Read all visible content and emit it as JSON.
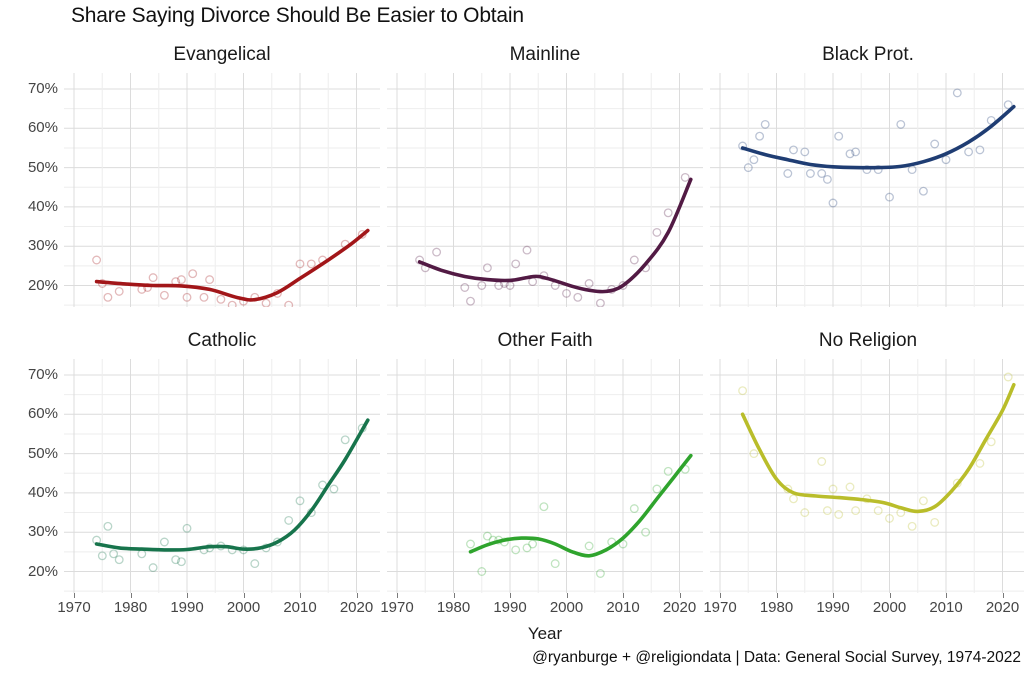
{
  "title": "Share Saying Divorce Should Be Easier to Obtain",
  "xlabel": "Year",
  "caption": "@ryanburge + @religiondata | Data: General Social Survey, 1974-2022",
  "chart_data": {
    "type": "scatter",
    "smoother": "loess-trend-line",
    "grid": true,
    "legend": "none",
    "x_ticks": [
      1970,
      1980,
      1990,
      2000,
      2010,
      2020
    ],
    "y_ticks": [
      "70%",
      "60%",
      "50%",
      "40%",
      "30%",
      "20%"
    ],
    "xlim": [
      1968,
      2024
    ],
    "ylim": [
      14,
      74
    ],
    "grid_major_color": "#dcdcdc",
    "grid_minor_color": "#eeeeee",
    "facets": [
      {
        "title": "Evangelical",
        "color": "#a21619",
        "points": [
          [
            1974,
            26.5
          ],
          [
            1975,
            20.5
          ],
          [
            1976,
            17
          ],
          [
            1978,
            18.5
          ],
          [
            1982,
            19
          ],
          [
            1983,
            19.5
          ],
          [
            1984,
            22
          ],
          [
            1986,
            17.5
          ],
          [
            1988,
            21
          ],
          [
            1989,
            21.5
          ],
          [
            1990,
            17
          ],
          [
            1991,
            23
          ],
          [
            1993,
            17
          ],
          [
            1994,
            21.5
          ],
          [
            1996,
            16.5
          ],
          [
            1998,
            15
          ],
          [
            2000,
            16
          ],
          [
            2002,
            17
          ],
          [
            2004,
            15.5
          ],
          [
            2006,
            18
          ],
          [
            2008,
            15
          ],
          [
            2010,
            25.5
          ],
          [
            2012,
            25.5
          ],
          [
            2014,
            26.5
          ],
          [
            2018,
            30.5
          ],
          [
            2021,
            33
          ]
        ],
        "trend": [
          [
            1974,
            21
          ],
          [
            1979,
            20.4
          ],
          [
            1984,
            20
          ],
          [
            1989,
            19.9
          ],
          [
            1994,
            19
          ],
          [
            1999,
            16.9
          ],
          [
            2002,
            16.4
          ],
          [
            2006,
            18.2
          ],
          [
            2010,
            21.8
          ],
          [
            2015,
            26.5
          ],
          [
            2019,
            30.5
          ],
          [
            2022,
            34
          ]
        ]
      },
      {
        "title": "Mainline",
        "color": "#521a44",
        "points": [
          [
            1974,
            26.5
          ],
          [
            1975,
            24.5
          ],
          [
            1977,
            28.5
          ],
          [
            1982,
            19.5
          ],
          [
            1983,
            16
          ],
          [
            1985,
            20
          ],
          [
            1986,
            24.5
          ],
          [
            1988,
            20
          ],
          [
            1989,
            20.5
          ],
          [
            1990,
            20
          ],
          [
            1991,
            25.5
          ],
          [
            1993,
            29
          ],
          [
            1994,
            21
          ],
          [
            1996,
            22.5
          ],
          [
            1998,
            20
          ],
          [
            2000,
            18
          ],
          [
            2002,
            17
          ],
          [
            2004,
            20.5
          ],
          [
            2006,
            15.5
          ],
          [
            2008,
            19
          ],
          [
            2010,
            20
          ],
          [
            2012,
            26.5
          ],
          [
            2014,
            24.5
          ],
          [
            2016,
            33.5
          ],
          [
            2018,
            38.5
          ],
          [
            2021,
            47.5
          ]
        ],
        "trend": [
          [
            1974,
            26
          ],
          [
            1978,
            23.8
          ],
          [
            1982,
            22.3
          ],
          [
            1986,
            21.5
          ],
          [
            1990,
            21.3
          ],
          [
            1993,
            22
          ],
          [
            1995,
            22.3
          ],
          [
            1998,
            21.2
          ],
          [
            2001,
            19.8
          ],
          [
            2004,
            18.8
          ],
          [
            2007,
            18.5
          ],
          [
            2010,
            20
          ],
          [
            2014,
            25.5
          ],
          [
            2018,
            33.5
          ],
          [
            2022,
            47
          ]
        ]
      },
      {
        "title": "Black Prot.",
        "color": "#1f3d73",
        "points": [
          [
            1974,
            55.5
          ],
          [
            1975,
            50
          ],
          [
            1976,
            52
          ],
          [
            1977,
            58
          ],
          [
            1978,
            61
          ],
          [
            1982,
            48.5
          ],
          [
            1983,
            54.5
          ],
          [
            1985,
            54
          ],
          [
            1986,
            48.5
          ],
          [
            1988,
            48.5
          ],
          [
            1989,
            47
          ],
          [
            1990,
            41
          ],
          [
            1991,
            58
          ],
          [
            1993,
            53.5
          ],
          [
            1994,
            54
          ],
          [
            1996,
            49.5
          ],
          [
            1998,
            49.5
          ],
          [
            2000,
            42.5
          ],
          [
            2002,
            61
          ],
          [
            2004,
            49.5
          ],
          [
            2006,
            44
          ],
          [
            2008,
            56
          ],
          [
            2010,
            52
          ],
          [
            2012,
            69
          ],
          [
            2014,
            54
          ],
          [
            2016,
            54.5
          ],
          [
            2018,
            62
          ],
          [
            2021,
            66
          ]
        ],
        "trend": [
          [
            1974,
            55
          ],
          [
            1978,
            53.3
          ],
          [
            1982,
            52
          ],
          [
            1986,
            50.8
          ],
          [
            1990,
            50.2
          ],
          [
            1994,
            50
          ],
          [
            1998,
            50
          ],
          [
            2002,
            50.3
          ],
          [
            2006,
            51.5
          ],
          [
            2010,
            53.5
          ],
          [
            2014,
            56.5
          ],
          [
            2018,
            60.5
          ],
          [
            2022,
            65.5
          ]
        ]
      },
      {
        "title": "Catholic",
        "color": "#17744c",
        "points": [
          [
            1974,
            28
          ],
          [
            1975,
            24
          ],
          [
            1976,
            31.5
          ],
          [
            1977,
            24.5
          ],
          [
            1978,
            23
          ],
          [
            1982,
            24.5
          ],
          [
            1984,
            21
          ],
          [
            1986,
            27.5
          ],
          [
            1988,
            23
          ],
          [
            1989,
            22.5
          ],
          [
            1990,
            31
          ],
          [
            1993,
            25.5
          ],
          [
            1994,
            26
          ],
          [
            1996,
            26.5
          ],
          [
            1998,
            25.5
          ],
          [
            2000,
            25.5
          ],
          [
            2002,
            22
          ],
          [
            2004,
            26
          ],
          [
            2006,
            27.5
          ],
          [
            2008,
            33
          ],
          [
            2010,
            38
          ],
          [
            2012,
            35
          ],
          [
            2014,
            42
          ],
          [
            2016,
            41
          ],
          [
            2018,
            53.5
          ],
          [
            2021,
            56.5
          ]
        ],
        "trend": [
          [
            1974,
            27
          ],
          [
            1978,
            26
          ],
          [
            1982,
            25.7
          ],
          [
            1986,
            25.5
          ],
          [
            1990,
            25.6
          ],
          [
            1994,
            26.3
          ],
          [
            1997,
            26.3
          ],
          [
            2000,
            25.7
          ],
          [
            2003,
            26
          ],
          [
            2006,
            27.5
          ],
          [
            2009,
            30.5
          ],
          [
            2012,
            35.5
          ],
          [
            2015,
            42
          ],
          [
            2018,
            48.5
          ],
          [
            2022,
            58.5
          ]
        ]
      },
      {
        "title": "Other Faith",
        "color": "#2fa42d",
        "points": [
          [
            1983,
            27
          ],
          [
            1985,
            20
          ],
          [
            1986,
            29
          ],
          [
            1987,
            28
          ],
          [
            1988,
            28
          ],
          [
            1989,
            27.5
          ],
          [
            1991,
            25.5
          ],
          [
            1993,
            26
          ],
          [
            1994,
            27
          ],
          [
            1996,
            36.5
          ],
          [
            1998,
            22
          ],
          [
            2004,
            26.5
          ],
          [
            2006,
            19.5
          ],
          [
            2008,
            27.5
          ],
          [
            2010,
            27
          ],
          [
            2012,
            36
          ],
          [
            2014,
            30
          ],
          [
            2016,
            41
          ],
          [
            2018,
            45.5
          ],
          [
            2021,
            46
          ]
        ],
        "trend": [
          [
            1983,
            25
          ],
          [
            1986,
            26.8
          ],
          [
            1989,
            28
          ],
          [
            1992,
            28.5
          ],
          [
            1995,
            28.3
          ],
          [
            1998,
            27
          ],
          [
            2001,
            25
          ],
          [
            2004,
            24
          ],
          [
            2007,
            25.5
          ],
          [
            2010,
            28.5
          ],
          [
            2013,
            33
          ],
          [
            2016,
            38.5
          ],
          [
            2019,
            44
          ],
          [
            2022,
            49.5
          ]
        ]
      },
      {
        "title": "No Religion",
        "color": "#b9bd2a",
        "points": [
          [
            1974,
            66
          ],
          [
            1976,
            50
          ],
          [
            1982,
            41
          ],
          [
            1983,
            38.5
          ],
          [
            1985,
            35
          ],
          [
            1988,
            48
          ],
          [
            1989,
            35.5
          ],
          [
            1990,
            41
          ],
          [
            1991,
            34.5
          ],
          [
            1993,
            41.5
          ],
          [
            1994,
            35.5
          ],
          [
            1996,
            38.5
          ],
          [
            1998,
            35.5
          ],
          [
            2000,
            33.5
          ],
          [
            2002,
            35
          ],
          [
            2004,
            31.5
          ],
          [
            2006,
            38
          ],
          [
            2008,
            32.5
          ],
          [
            2012,
            42.5
          ],
          [
            2016,
            47.5
          ],
          [
            2018,
            53
          ],
          [
            2021,
            69.5
          ]
        ],
        "trend": [
          [
            1974,
            60
          ],
          [
            1977,
            51
          ],
          [
            1980,
            43.5
          ],
          [
            1983,
            40
          ],
          [
            1987,
            39.2
          ],
          [
            1991,
            38.8
          ],
          [
            1995,
            38.3
          ],
          [
            1999,
            37.5
          ],
          [
            2002,
            36.2
          ],
          [
            2005,
            35.3
          ],
          [
            2008,
            36.5
          ],
          [
            2011,
            40.5
          ],
          [
            2014,
            46
          ],
          [
            2017,
            53.5
          ],
          [
            2020,
            61
          ],
          [
            2022,
            67.5
          ]
        ]
      }
    ]
  }
}
